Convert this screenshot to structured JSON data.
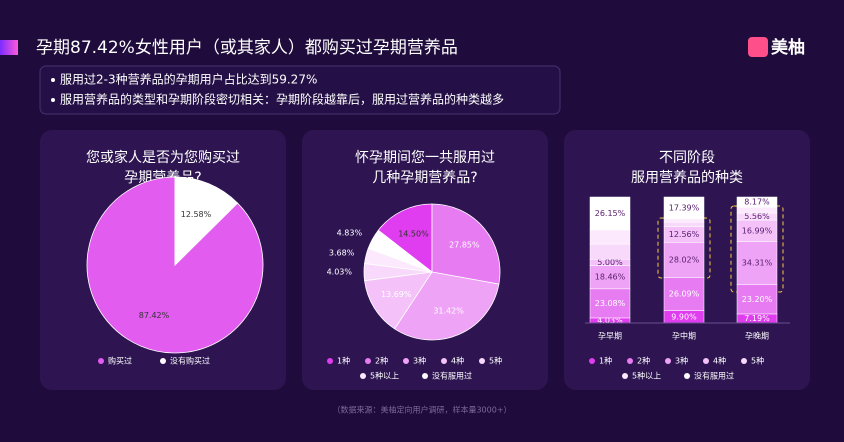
{
  "title": "孕期87.42%女性用户（或其家人）都购买过孕期营养品",
  "logo": "美柚",
  "bullets": [
    "服用过2-3种营养品的孕期用户占比达到59.27%",
    "服用营养品的类型和孕期阶段密切相关：孕期阶段越靠后，服用过营养品的种类越多"
  ],
  "source": "（数据来源：美柚定向用户调研，样本量3000+）",
  "chart_data": [
    {
      "type": "pie",
      "title": [
        "您或家人是否为您购买过",
        "孕期营养品?"
      ],
      "categories": [
        "购买过",
        "没有购买过"
      ],
      "values": [
        87.42,
        12.58
      ],
      "value_labels": [
        "87.42%",
        "12.58%"
      ],
      "colors": [
        "#e35cf0",
        "#ffffff"
      ],
      "legend": "bottom"
    },
    {
      "type": "pie",
      "title": [
        "怀孕期间您一共服用过",
        "几种孕期营养品?"
      ],
      "categories": [
        "1种",
        "2种",
        "3种",
        "4种",
        "5种",
        "5种以上",
        "没有服用过"
      ],
      "values": [
        14.5,
        27.85,
        31.42,
        13.69,
        4.03,
        3.68,
        4.83
      ],
      "value_labels": [
        "14.50%",
        "27.85%",
        "31.42%",
        "13.69%",
        "4.03%",
        "3.68%",
        "4.83%"
      ],
      "colors": [
        "#e03cf0",
        "#e77cf2",
        "#efa3f6",
        "#f4c2f9",
        "#f8d9fb",
        "#fce9fd",
        "#ffffff"
      ],
      "legend": "bottom"
    },
    {
      "type": "stacked_bar",
      "title": [
        "不同阶段",
        "服用营养品的种类"
      ],
      "categories": [
        "孕早期",
        "孕中期",
        "孕晚期"
      ],
      "ylim": [
        0,
        100
      ],
      "legend": "bottom",
      "series": [
        {
          "name": "1种",
          "color": "#e03cf0",
          "values": [
            4.03,
            9.9,
            7.19
          ],
          "value_labels": [
            "4.03%",
            "9.90%",
            "7.19%"
          ]
        },
        {
          "name": "2种",
          "color": "#e77cf2",
          "values": [
            23.08,
            26.09,
            23.2
          ],
          "value_labels": [
            "23.08%",
            "26.09%",
            "23.20%"
          ]
        },
        {
          "name": "3种",
          "color": "#efa3f6",
          "values": [
            18.46,
            28.02,
            34.31
          ],
          "value_labels": [
            "18.46%",
            "28.02%",
            "34.31%"
          ]
        },
        {
          "name": "4种",
          "color": "#f4c2f9",
          "values": [
            5.0,
            12.56,
            16.99
          ],
          "value_labels": [
            "5.00%",
            "12.56%",
            "16.99%"
          ]
        },
        {
          "name": "5种",
          "color": "#f8d9fb",
          "values": [
            12.0,
            3.5,
            5.56
          ],
          "value_labels": [
            null,
            null,
            "5.56%"
          ]
        },
        {
          "name": "5种以上",
          "color": "#fce9fd",
          "values": [
            11.28,
            2.54,
            4.58
          ],
          "value_labels": [
            null,
            null,
            null
          ]
        },
        {
          "name": "没有服用过",
          "color": "#ffffff",
          "values": [
            26.15,
            17.39,
            8.17
          ],
          "value_labels": [
            "26.15%",
            "17.39%",
            "8.17%"
          ]
        }
      ]
    }
  ]
}
